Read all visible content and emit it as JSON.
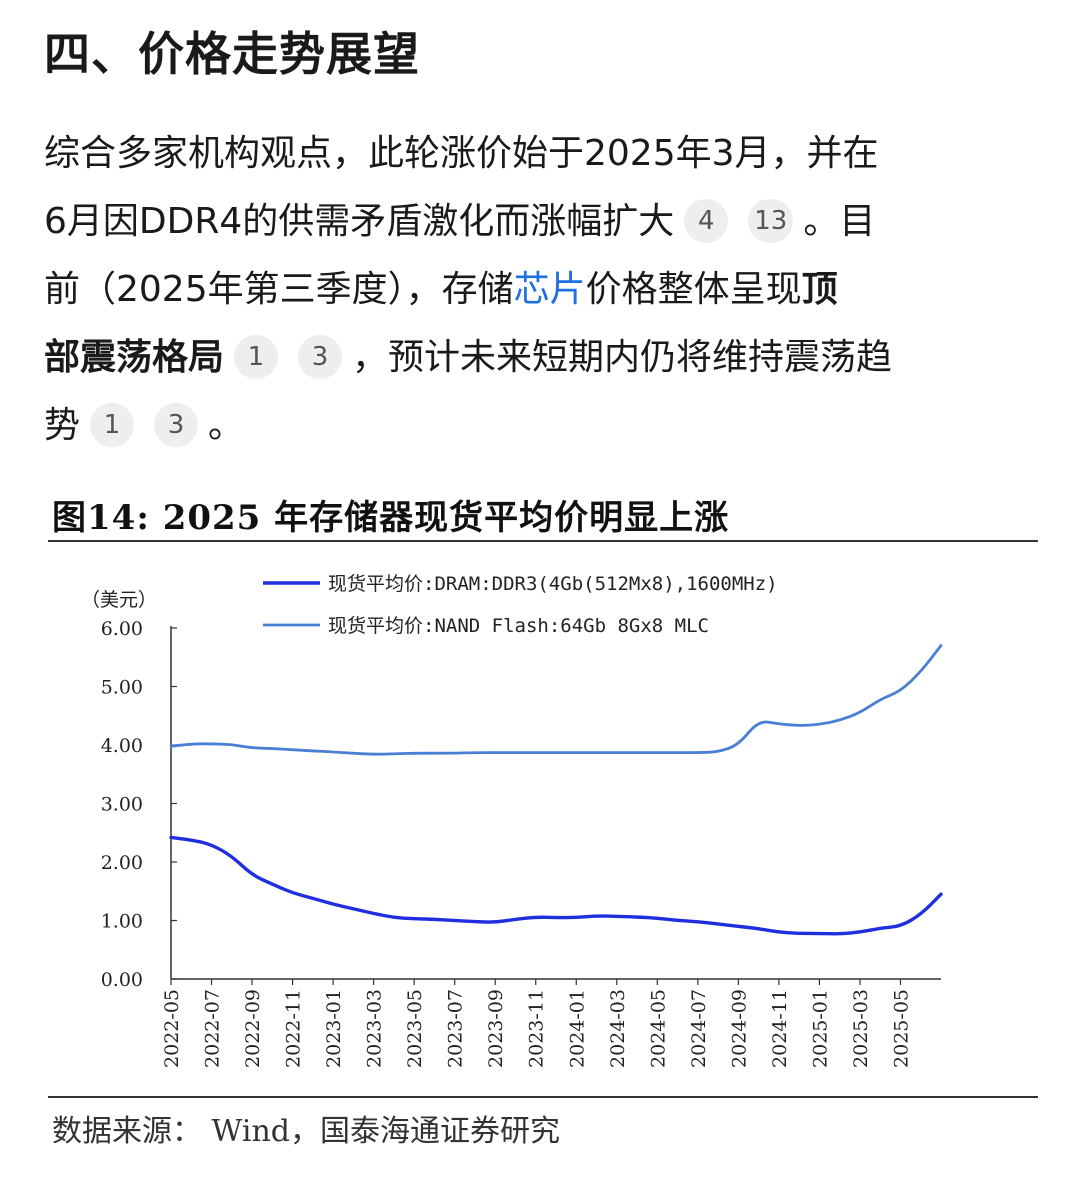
{
  "heading": "四、价格走势展望",
  "paragraph": {
    "line1": "综合多家机构观点，此轮涨价始于2025年3月，并在",
    "line2_a": "6月因DDR4的供需矛盾激化而涨幅扩大",
    "line2_cite1": "4",
    "line2_cite2": "13",
    "line2_b": "。目",
    "line3_a": "前（2025年第三季度），存储",
    "line3_link": "芯片",
    "line3_b": "价格整体呈现",
    "line3_bold": "顶",
    "line4_bold": "部震荡格局",
    "line4_cite1": "1",
    "line4_cite2": "3",
    "line4_b": "，预计未来短期内仍将维持震荡趋",
    "line5_a": "势",
    "line5_cite1": "1",
    "line5_cite2": "3",
    "line5_b": "。"
  },
  "figure": {
    "title": "图14:  2025 年存储器现货平均价明显上涨",
    "source": "数据来源：  Wind，国泰海通证券研究"
  },
  "colors": {
    "dram": "#1f2fe0",
    "nand": "#4a7fd4",
    "link": "#1f6fe0"
  },
  "chart_data": {
    "type": "line",
    "title": "图14:  2025 年存储器现货平均价明显上涨",
    "ylabel": "（美元）",
    "ylim": [
      0,
      6
    ],
    "yticks": [
      "0.00",
      "1.00",
      "2.00",
      "3.00",
      "4.00",
      "5.00",
      "6.00"
    ],
    "xticks": [
      "2022-05",
      "2022-07",
      "2022-09",
      "2022-11",
      "2023-01",
      "2023-03",
      "2023-05",
      "2023-07",
      "2023-09",
      "2023-11",
      "2024-01",
      "2024-03",
      "2024-05",
      "2024-07",
      "2024-09",
      "2024-11",
      "2025-01",
      "2025-03",
      "2025-05"
    ],
    "legend_position": "top",
    "grid": false,
    "x": [
      "2022-05",
      "2022-06",
      "2022-07",
      "2022-08",
      "2022-09",
      "2022-10",
      "2022-11",
      "2022-12",
      "2023-01",
      "2023-02",
      "2023-03",
      "2023-04",
      "2023-05",
      "2023-06",
      "2023-07",
      "2023-08",
      "2023-09",
      "2023-10",
      "2023-11",
      "2023-12",
      "2024-01",
      "2024-02",
      "2024-03",
      "2024-04",
      "2024-05",
      "2024-06",
      "2024-07",
      "2024-08",
      "2024-09",
      "2024-10",
      "2024-11",
      "2024-12",
      "2025-01",
      "2025-02",
      "2025-03",
      "2025-04",
      "2025-05",
      "2025-06",
      "2025-07"
    ],
    "series": [
      {
        "name": "现货平均价:DRAM:DDR3(4Gb(512Mx8),1600MHz)",
        "color": "#1f2fe0",
        "values": [
          2.42,
          2.38,
          2.3,
          2.1,
          1.78,
          1.62,
          1.47,
          1.38,
          1.28,
          1.2,
          1.12,
          1.05,
          1.03,
          1.02,
          1.0,
          0.98,
          0.97,
          1.02,
          1.06,
          1.05,
          1.05,
          1.08,
          1.07,
          1.06,
          1.04,
          1.0,
          0.98,
          0.94,
          0.9,
          0.86,
          0.8,
          0.78,
          0.78,
          0.77,
          0.8,
          0.87,
          0.9,
          1.1,
          1.45
        ]
      },
      {
        "name": "现货平均价:NAND Flash:64Gb 8Gx8 MLC",
        "color": "#4a7fd4",
        "values": [
          3.98,
          4.02,
          4.02,
          4.01,
          3.95,
          3.94,
          3.92,
          3.9,
          3.88,
          3.86,
          3.84,
          3.85,
          3.86,
          3.86,
          3.86,
          3.87,
          3.87,
          3.87,
          3.87,
          3.87,
          3.87,
          3.87,
          3.87,
          3.87,
          3.87,
          3.87,
          3.87,
          3.88,
          4.0,
          4.42,
          4.36,
          4.33,
          4.35,
          4.42,
          4.55,
          4.78,
          4.92,
          5.25,
          5.7
        ]
      }
    ]
  }
}
